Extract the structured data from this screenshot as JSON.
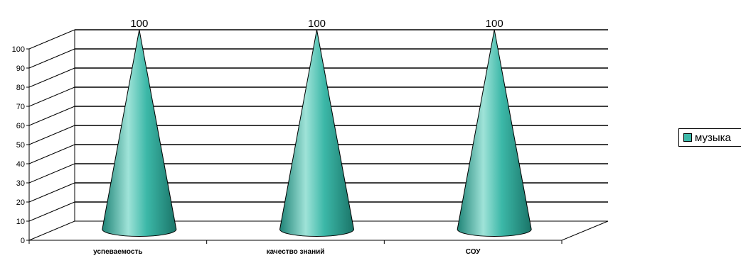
{
  "chart_data": {
    "type": "bar",
    "style": "3d-cone",
    "categories": [
      "успеваемость",
      "качество знаний",
      "СОУ"
    ],
    "series": [
      {
        "name": "музыка",
        "values": [
          100,
          100,
          100
        ]
      }
    ],
    "data_labels": [
      "100",
      "100",
      "100"
    ],
    "ylim": [
      0,
      100
    ],
    "yticks": [
      0,
      10,
      20,
      30,
      40,
      50,
      60,
      70,
      80,
      90,
      100
    ],
    "grid": true,
    "legend": "right",
    "colors": {
      "cone": "#3CB8A8",
      "cone_dark": "#1F8477",
      "cone_light": "#9FE3D8"
    }
  },
  "legend": {
    "label": "музыка"
  }
}
